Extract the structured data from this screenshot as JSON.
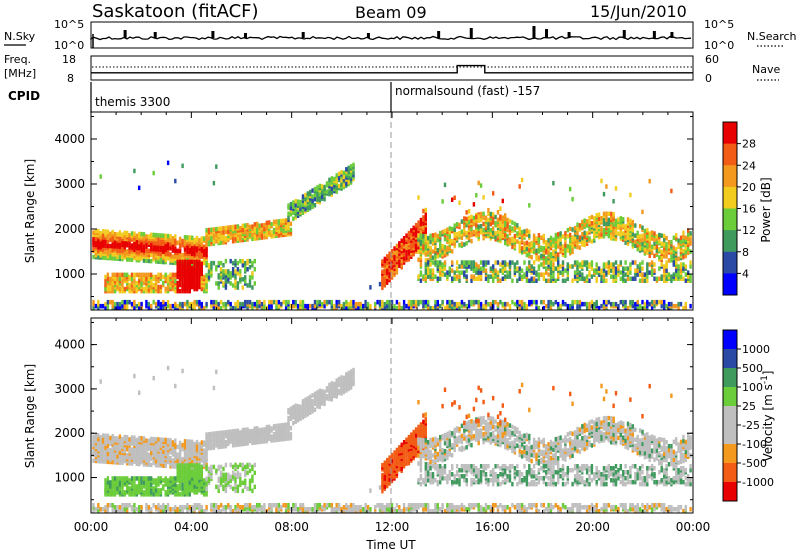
{
  "header": {
    "title": "Saskatoon (fitACF)",
    "beam": "Beam 09",
    "date": "15/Jun/2010"
  },
  "top_panel": {
    "left_label": "N.Sky",
    "right_label": "N.Search",
    "left_ticks": [
      "10^5",
      "10^0"
    ],
    "right_ticks": [
      "10^5",
      "10^0"
    ]
  },
  "freq_panel": {
    "left_label_1": "Freq.",
    "left_label_2": "[MHz]",
    "right_label": "Nave",
    "left_ticks": [
      "18",
      "8"
    ],
    "right_ticks": [
      "60",
      "0"
    ]
  },
  "cpid": {
    "label": "CPID",
    "modes": [
      {
        "name": "themis 3300",
        "start_ut": 0
      },
      {
        "name": "normalsound (fast) -157",
        "start_ut": 12
      }
    ]
  },
  "colors": {
    "power": [
      "#0000ff",
      "#2a4aa6",
      "#3f9a5e",
      "#6ccd3a",
      "#f2cc1e",
      "#f39a1e",
      "#f25c14",
      "#e80000"
    ],
    "velocity": [
      "#e80000",
      "#f25c14",
      "#f39a1e",
      "#bfbfbf",
      "#bfbfbf",
      "#6ccd3a",
      "#3f9a5e",
      "#2a4aa6",
      "#0000ff"
    ]
  },
  "chart_data": [
    {
      "type": "heatmap",
      "name": "power",
      "ylabel": "Slant Range [km]",
      "ylim": [
        200,
        4600
      ],
      "yticks": [
        1000,
        2000,
        3000,
        4000
      ],
      "colorbar": {
        "label": "Power [dB]",
        "ticks": [
          4,
          8,
          12,
          16,
          20,
          24,
          28
        ],
        "range": [
          0,
          32
        ]
      },
      "features": [
        {
          "ut": [
            0,
            4.5
          ],
          "range_km": [
            1400,
            2000
          ],
          "level": "20-28 dB"
        },
        {
          "ut": [
            3.5,
            4.3
          ],
          "range_km": [
            700,
            1300
          ],
          "level": "28 dB"
        },
        {
          "ut": [
            5,
            8
          ],
          "range_km": [
            1700,
            2100
          ],
          "level": "12-20 dB"
        },
        {
          "ut": [
            8,
            10.5
          ],
          "range_km": [
            2200,
            3400
          ],
          "level": "8-16 dB"
        },
        {
          "ut": [
            11.6,
            13.2
          ],
          "range_km": [
            800,
            2300
          ],
          "level": "20-28 dB"
        },
        {
          "ut": [
            13,
            24
          ],
          "range_km": [
            1000,
            2500
          ],
          "level": "8-20 dB"
        }
      ]
    },
    {
      "type": "heatmap",
      "name": "velocity",
      "ylabel": "Slant Range [km]",
      "ylim": [
        200,
        4600
      ],
      "yticks": [
        1000,
        2000,
        3000,
        4000
      ],
      "colorbar": {
        "label": "Velocity [m s^-1]",
        "ticks": [
          "1000",
          "500",
          "100",
          "25",
          "-25",
          "-100",
          "-500",
          "-1000"
        ]
      },
      "features": [
        {
          "ut": [
            0,
            5
          ],
          "range_km": [
            1600,
            2100
          ],
          "level": "-25 to 25 m/s"
        },
        {
          "ut": [
            0.5,
            4
          ],
          "range_km": [
            700,
            1000
          ],
          "level": "100-500 m/s"
        },
        {
          "ut": [
            11.6,
            13.2
          ],
          "range_km": [
            900,
            2300
          ],
          "level": "-500 to -100 m/s"
        },
        {
          "ut": [
            13,
            24
          ],
          "range_km": [
            1000,
            2400
          ],
          "level": "-25 to 25 m/s"
        }
      ]
    },
    {
      "type": "line",
      "name": "frequency",
      "x": [
        0,
        14.6,
        14.6,
        15.7,
        15.7,
        24
      ],
      "y": [
        11,
        11,
        14,
        14,
        11,
        11
      ],
      "ylim": [
        8,
        18
      ]
    }
  ],
  "xaxis": {
    "label": "Time UT",
    "ticks": [
      "00:00",
      "04:00",
      "08:00",
      "12:00",
      "16:00",
      "20:00",
      "00:00"
    ],
    "range": [
      0,
      24
    ]
  }
}
